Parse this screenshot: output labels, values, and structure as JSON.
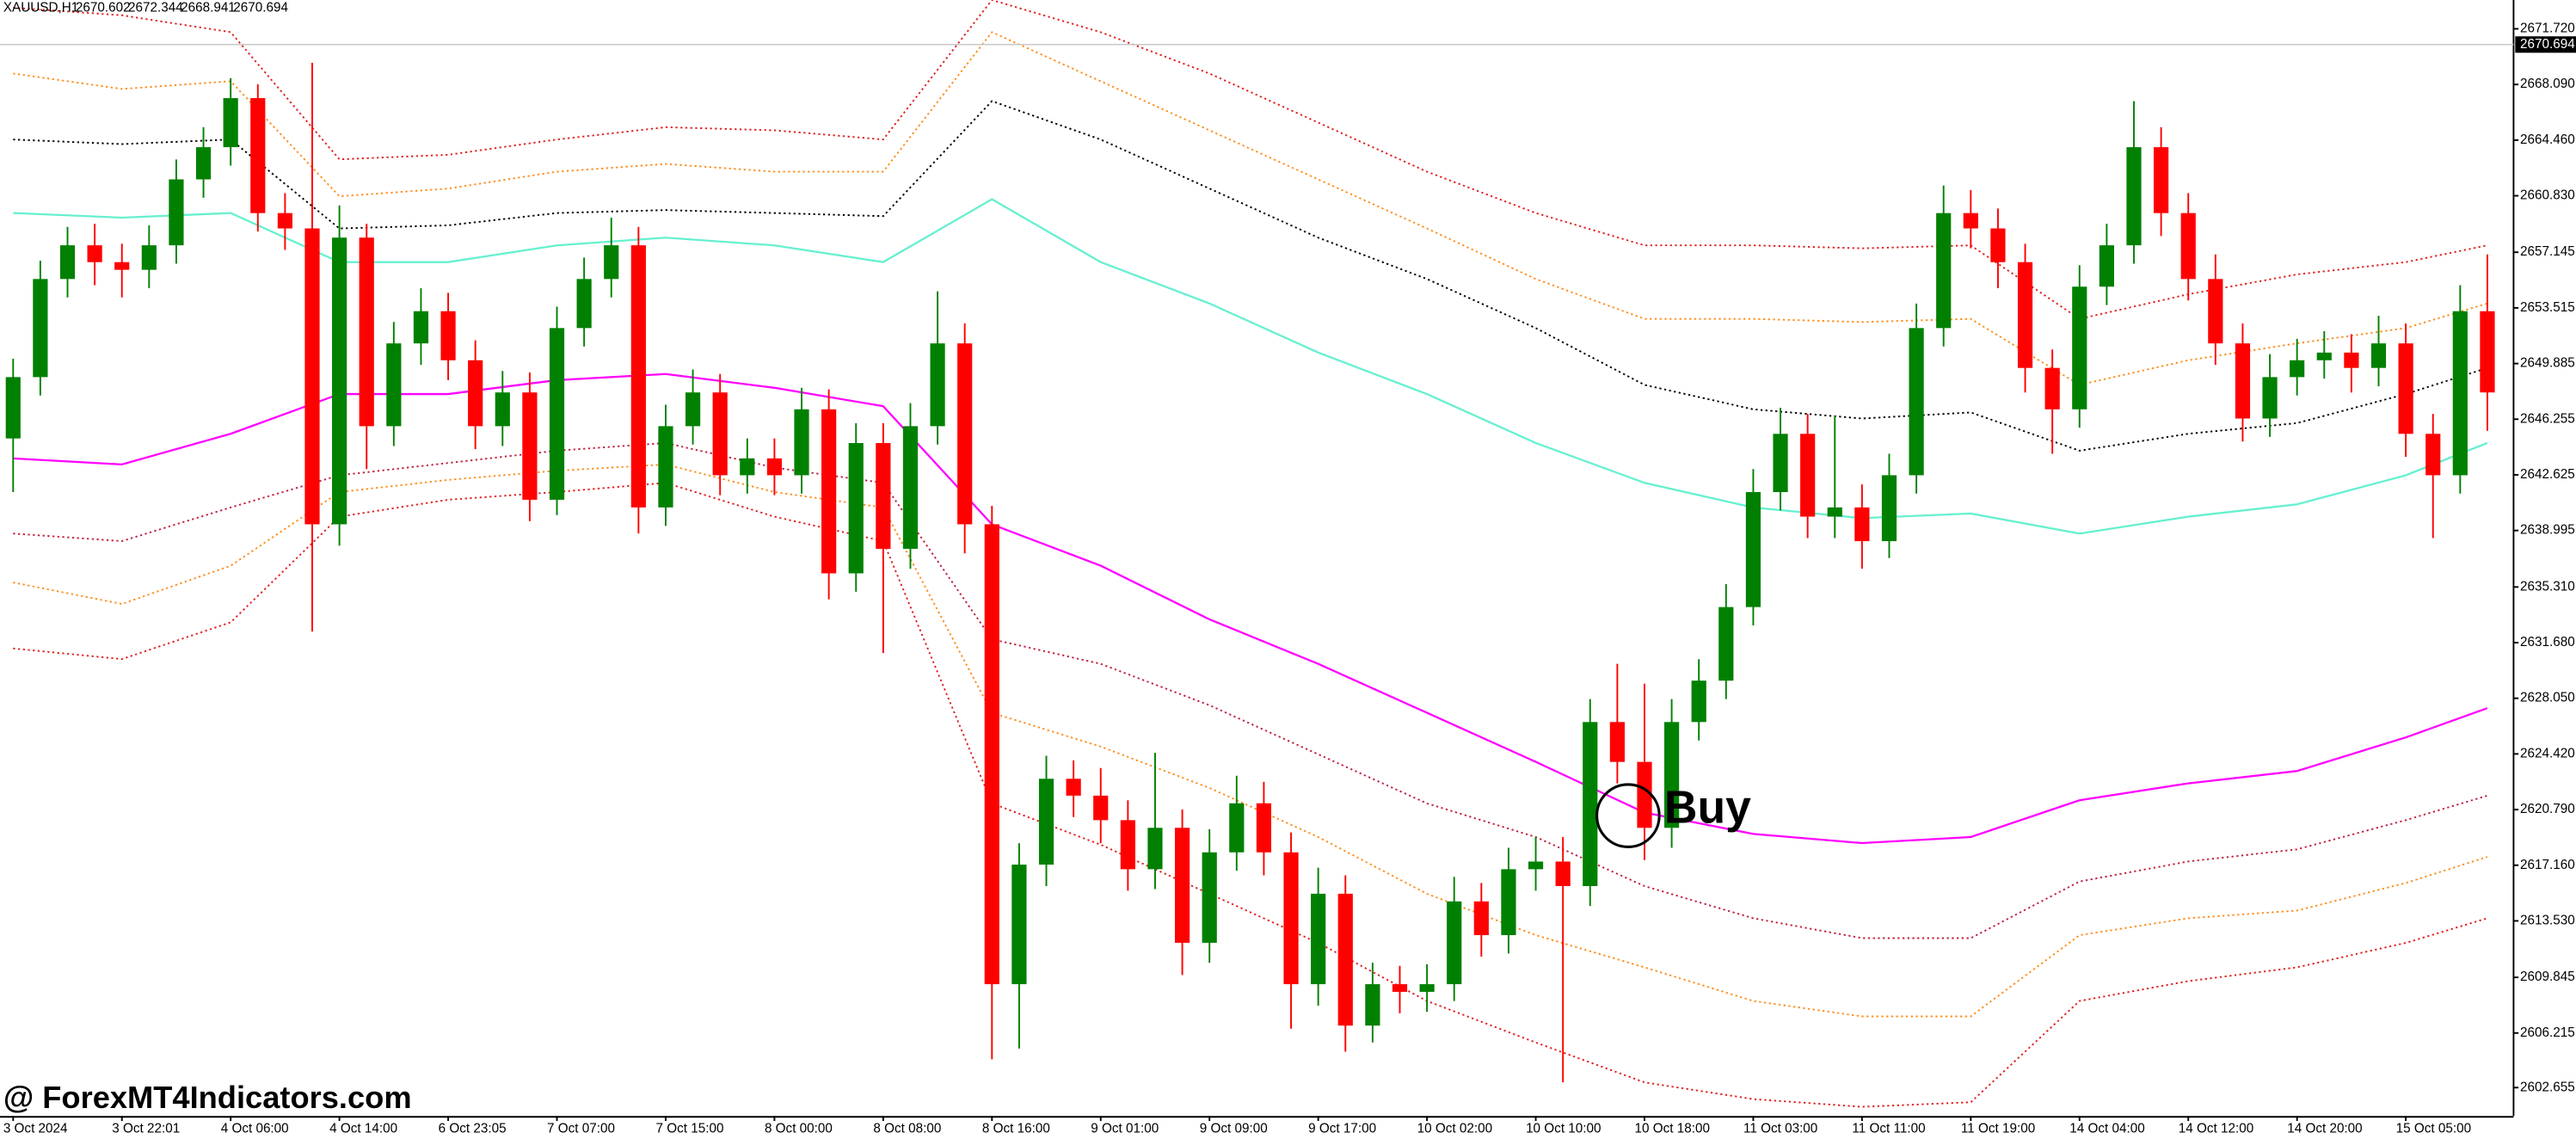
{
  "chart_data": {
    "type": "candlestick",
    "symbol": "XAUUSD,H1",
    "quote": [
      2670.602,
      2672.344,
      2668.941,
      2670.694
    ],
    "watermark": "@ ForexMT4Indicators.com",
    "annotation": "Buy",
    "up_color": "#008000",
    "down_color": "#ff0000",
    "ylim": [
      2600.8,
      2673.6
    ],
    "yticks": [
      {
        "value": 2671.72,
        "label": "2671.720"
      },
      {
        "value": 2668.09,
        "label": "2668.090"
      },
      {
        "value": 2664.46,
        "label": "2664.460"
      },
      {
        "value": 2660.83,
        "label": "2660.830"
      },
      {
        "value": 2657.145,
        "label": "2657.145"
      },
      {
        "value": 2653.515,
        "label": "2653.515"
      },
      {
        "value": 2649.885,
        "label": "2649.885"
      },
      {
        "value": 2646.255,
        "label": "2646.255"
      },
      {
        "value": 2642.625,
        "label": "2642.625"
      },
      {
        "value": 2638.995,
        "label": "2638.995"
      },
      {
        "value": 2635.31,
        "label": "2635.310"
      },
      {
        "value": 2631.68,
        "label": "2631.680"
      },
      {
        "value": 2628.05,
        "label": "2628.050"
      },
      {
        "value": 2624.42,
        "label": "2624.420"
      },
      {
        "value": 2620.79,
        "label": "2620.790"
      },
      {
        "value": 2617.16,
        "label": "2617.160"
      },
      {
        "value": 2613.53,
        "label": "2613.530"
      },
      {
        "value": 2609.845,
        "label": "2609.845"
      },
      {
        "value": 2606.215,
        "label": "2606.215"
      },
      {
        "value": 2602.655,
        "label": "2602.655"
      }
    ],
    "categories": [
      "3 Oct 2024",
      null,
      null,
      null,
      "3 Oct 22:01",
      null,
      null,
      null,
      "4 Oct 06:00",
      null,
      null,
      null,
      "4 Oct 14:00",
      null,
      null,
      null,
      "6 Oct 23:05",
      null,
      null,
      null,
      "7 Oct 07:00",
      null,
      null,
      null,
      "7 Oct 15:00",
      null,
      null,
      null,
      "8 Oct 00:00",
      null,
      null,
      null,
      "8 Oct 08:00",
      null,
      null,
      null,
      "8 Oct 16:00",
      null,
      null,
      null,
      "9 Oct 01:00",
      null,
      null,
      null,
      "9 Oct 09:00",
      null,
      null,
      null,
      "9 Oct 17:00",
      null,
      null,
      null,
      "10 Oct 02:00",
      null,
      null,
      null,
      "10 Oct 10:00",
      null,
      null,
      null,
      "10 Oct 18:00",
      null,
      null,
      null,
      "11 Oct 03:00",
      null,
      null,
      null,
      "11 Oct 11:00",
      null,
      null,
      null,
      "11 Oct 19:00",
      null,
      null,
      null,
      "14 Oct 04:00",
      null,
      null,
      null,
      "14 Oct 12:00",
      null,
      null,
      null,
      "14 Oct 20:00",
      null,
      null,
      null,
      "15 Oct 05:00",
      null,
      null,
      null
    ],
    "ohlc": [
      [
        2645.0,
        2650.2,
        2641.5,
        2649.0
      ],
      [
        2649.0,
        2656.6,
        2647.8,
        2655.4
      ],
      [
        2655.4,
        2658.8,
        2654.2,
        2657.6
      ],
      [
        2657.6,
        2659.0,
        2655.0,
        2656.5
      ],
      [
        2656.5,
        2657.7,
        2654.2,
        2656.0
      ],
      [
        2656.0,
        2658.9,
        2654.8,
        2657.6
      ],
      [
        2657.6,
        2663.2,
        2656.4,
        2661.9
      ],
      [
        2661.9,
        2665.3,
        2660.7,
        2664.0
      ],
      [
        2664.0,
        2668.5,
        2662.8,
        2667.2
      ],
      [
        2667.2,
        2668.1,
        2658.5,
        2659.7
      ],
      [
        2659.7,
        2661.0,
        2657.3,
        2658.7
      ],
      [
        2658.7,
        2669.5,
        2632.4,
        2639.4
      ],
      [
        2639.4,
        2660.2,
        2638.0,
        2658.1
      ],
      [
        2658.1,
        2659.0,
        2643.0,
        2645.8
      ],
      [
        2645.8,
        2652.6,
        2644.5,
        2651.2
      ],
      [
        2651.2,
        2654.8,
        2649.8,
        2653.3
      ],
      [
        2653.3,
        2654.5,
        2648.8,
        2650.1
      ],
      [
        2650.1,
        2651.4,
        2644.3,
        2645.8
      ],
      [
        2645.8,
        2649.4,
        2644.5,
        2648.0
      ],
      [
        2648.0,
        2649.3,
        2639.6,
        2641.0
      ],
      [
        2641.0,
        2653.6,
        2640.0,
        2652.2
      ],
      [
        2652.2,
        2656.8,
        2651.0,
        2655.4
      ],
      [
        2655.4,
        2659.4,
        2654.2,
        2657.6
      ],
      [
        2657.6,
        2658.8,
        2638.8,
        2640.5
      ],
      [
        2640.5,
        2647.2,
        2639.3,
        2645.8
      ],
      [
        2645.8,
        2649.5,
        2644.6,
        2648.0
      ],
      [
        2648.0,
        2649.2,
        2641.3,
        2642.6
      ],
      [
        2642.6,
        2645.0,
        2641.4,
        2643.7
      ],
      [
        2643.7,
        2645.0,
        2641.3,
        2642.6
      ],
      [
        2642.6,
        2648.3,
        2641.4,
        2646.9
      ],
      [
        2646.9,
        2648.2,
        2634.5,
        2636.2
      ],
      [
        2636.2,
        2646.0,
        2635.0,
        2644.7
      ],
      [
        2644.7,
        2646.0,
        2631.0,
        2637.8
      ],
      [
        2637.8,
        2647.3,
        2636.5,
        2645.8
      ],
      [
        2645.8,
        2654.6,
        2644.6,
        2651.2
      ],
      [
        2651.2,
        2652.5,
        2637.5,
        2639.4
      ],
      [
        2639.4,
        2640.6,
        2604.5,
        2609.4
      ],
      [
        2609.4,
        2618.6,
        2605.2,
        2617.2
      ],
      [
        2617.2,
        2624.3,
        2615.8,
        2622.8
      ],
      [
        2622.8,
        2624.0,
        2620.3,
        2621.7
      ],
      [
        2621.7,
        2623.5,
        2618.6,
        2620.1
      ],
      [
        2620.1,
        2621.4,
        2615.5,
        2616.9
      ],
      [
        2616.9,
        2624.5,
        2615.6,
        2619.6
      ],
      [
        2619.6,
        2620.8,
        2610.0,
        2612.1
      ],
      [
        2612.1,
        2619.5,
        2610.8,
        2618.0
      ],
      [
        2618.0,
        2623.0,
        2616.8,
        2621.2
      ],
      [
        2621.2,
        2622.6,
        2616.5,
        2618.0
      ],
      [
        2618.0,
        2619.3,
        2606.5,
        2609.4
      ],
      [
        2609.4,
        2617.0,
        2608.0,
        2615.3
      ],
      [
        2615.3,
        2616.5,
        2605.0,
        2606.7
      ],
      [
        2606.7,
        2610.8,
        2605.6,
        2609.4
      ],
      [
        2609.4,
        2610.6,
        2607.5,
        2608.9
      ],
      [
        2608.9,
        2610.7,
        2607.6,
        2609.4
      ],
      [
        2609.4,
        2616.4,
        2608.3,
        2614.8
      ],
      [
        2614.8,
        2616.0,
        2611.2,
        2612.6
      ],
      [
        2612.6,
        2618.3,
        2611.4,
        2616.9
      ],
      [
        2616.9,
        2619.0,
        2615.5,
        2617.4
      ],
      [
        2617.4,
        2619.0,
        2603.0,
        2615.8
      ],
      [
        2615.8,
        2628.0,
        2614.5,
        2626.5
      ],
      [
        2626.5,
        2630.3,
        2622.5,
        2623.9
      ],
      [
        2623.9,
        2629.0,
        2617.5,
        2619.6
      ],
      [
        2619.6,
        2628.0,
        2618.3,
        2626.5
      ],
      [
        2626.5,
        2630.6,
        2625.3,
        2629.2
      ],
      [
        2629.2,
        2635.5,
        2628.0,
        2634.0
      ],
      [
        2634.0,
        2643.0,
        2632.8,
        2641.5
      ],
      [
        2641.5,
        2647.0,
        2640.3,
        2645.3
      ],
      [
        2645.3,
        2646.6,
        2638.5,
        2639.9
      ],
      [
        2639.9,
        2646.5,
        2638.5,
        2640.5
      ],
      [
        2640.5,
        2642.0,
        2636.5,
        2638.3
      ],
      [
        2638.3,
        2644.0,
        2637.2,
        2642.6
      ],
      [
        2642.6,
        2653.8,
        2641.4,
        2652.2
      ],
      [
        2652.2,
        2661.5,
        2651.0,
        2659.7
      ],
      [
        2659.7,
        2661.2,
        2657.4,
        2658.7
      ],
      [
        2658.7,
        2660.0,
        2654.8,
        2656.5
      ],
      [
        2656.5,
        2657.7,
        2648.0,
        2649.6
      ],
      [
        2649.6,
        2650.8,
        2644.0,
        2646.9
      ],
      [
        2646.9,
        2656.3,
        2645.7,
        2654.9
      ],
      [
        2654.9,
        2659.0,
        2653.7,
        2657.6
      ],
      [
        2657.6,
        2667.0,
        2656.4,
        2664.0
      ],
      [
        2664.0,
        2665.3,
        2658.2,
        2659.7
      ],
      [
        2659.7,
        2661.0,
        2654.0,
        2655.4
      ],
      [
        2655.4,
        2657.0,
        2649.8,
        2651.2
      ],
      [
        2651.2,
        2652.5,
        2644.8,
        2646.3
      ],
      [
        2646.3,
        2650.5,
        2645.1,
        2649.0
      ],
      [
        2649.0,
        2651.5,
        2647.8,
        2650.1
      ],
      [
        2650.1,
        2652.0,
        2648.9,
        2650.6
      ],
      [
        2650.6,
        2651.8,
        2648.0,
        2649.6
      ],
      [
        2649.6,
        2653.0,
        2648.4,
        2651.2
      ],
      [
        2651.2,
        2652.5,
        2643.8,
        2645.3
      ],
      [
        2645.3,
        2646.6,
        2638.5,
        2642.6
      ],
      [
        2642.6,
        2655.0,
        2641.4,
        2653.3
      ],
      [
        2653.3,
        2657.0,
        2645.5,
        2648.0
      ]
    ],
    "indicator_x": [
      0,
      4,
      8,
      12,
      16,
      20,
      24,
      28,
      32,
      36,
      40,
      44,
      48,
      52,
      56,
      60,
      64,
      68,
      72,
      76,
      80,
      84,
      88,
      91
    ],
    "indicators": [
      {
        "color": "#ff00ff",
        "style": "solid",
        "values": [
          2643.7,
          2643.3,
          2645.3,
          2647.9,
          2647.9,
          2648.8,
          2649.2,
          2648.3,
          2647.1,
          2639.4,
          2636.7,
          2633.2,
          2630.3,
          2627.1,
          2623.9,
          2620.6,
          2619.2,
          2618.6,
          2619.0,
          2621.4,
          2622.5,
          2623.3,
          2625.5,
          2627.4
        ]
      },
      {
        "color": "#66f0d0",
        "style": "solid",
        "values": [
          2659.7,
          2659.4,
          2659.7,
          2656.5,
          2656.5,
          2657.6,
          2658.1,
          2657.6,
          2656.5,
          2660.6,
          2656.5,
          2653.8,
          2650.6,
          2647.9,
          2644.7,
          2642.1,
          2640.5,
          2639.8,
          2640.1,
          2638.8,
          2639.9,
          2640.7,
          2642.6,
          2644.7
        ]
      },
      {
        "color": "#000000",
        "style": "dotted",
        "values": [
          2664.5,
          2664.2,
          2664.5,
          2658.7,
          2658.9,
          2659.7,
          2659.9,
          2659.7,
          2659.5,
          2667.0,
          2664.5,
          2661.3,
          2658.1,
          2655.4,
          2652.2,
          2648.5,
          2646.9,
          2646.3,
          2646.7,
          2644.2,
          2645.3,
          2646.0,
          2647.9,
          2649.6
        ]
      },
      {
        "color": "#ff8c1a",
        "style": "dotted",
        "values": [
          2668.8,
          2667.8,
          2668.3,
          2660.8,
          2661.3,
          2662.4,
          2662.9,
          2662.4,
          2662.4,
          2671.5,
          2668.3,
          2665.1,
          2661.9,
          2658.7,
          2655.4,
          2652.8,
          2652.8,
          2652.6,
          2652.8,
          2648.5,
          2650.1,
          2651.2,
          2652.2,
          2653.8
        ]
      },
      {
        "color": "#e02020",
        "style": "dotted",
        "values": [
          2673.1,
          2672.6,
          2671.5,
          2663.2,
          2663.5,
          2664.5,
          2665.3,
          2665.1,
          2664.5,
          2673.6,
          2671.5,
          2668.8,
          2665.6,
          2662.4,
          2659.7,
          2657.6,
          2657.6,
          2657.4,
          2657.6,
          2652.8,
          2654.4,
          2655.7,
          2656.5,
          2657.6
        ]
      },
      {
        "color": "#c02040",
        "style": "dotted",
        "values": [
          2638.8,
          2638.3,
          2640.5,
          2642.6,
          2643.4,
          2644.2,
          2644.7,
          2643.1,
          2642.1,
          2631.9,
          2630.3,
          2627.6,
          2624.4,
          2621.2,
          2619.0,
          2615.8,
          2613.7,
          2612.4,
          2612.4,
          2616.1,
          2617.4,
          2618.2,
          2620.1,
          2621.7
        ]
      },
      {
        "color": "#ff8c1a",
        "style": "dotted",
        "values": [
          2635.6,
          2634.2,
          2636.7,
          2641.5,
          2642.3,
          2642.9,
          2643.3,
          2641.5,
          2640.5,
          2627.1,
          2624.9,
          2622.2,
          2619.0,
          2615.3,
          2612.6,
          2610.5,
          2608.3,
          2607.3,
          2607.3,
          2612.6,
          2613.7,
          2614.2,
          2616.0,
          2617.7
        ]
      },
      {
        "color": "#e02020",
        "style": "dotted",
        "values": [
          2631.3,
          2630.6,
          2633.0,
          2639.9,
          2641.0,
          2641.5,
          2642.1,
          2639.9,
          2638.3,
          2621.2,
          2618.5,
          2615.3,
          2612.1,
          2608.3,
          2605.6,
          2603.0,
          2601.9,
          2601.4,
          2601.7,
          2608.3,
          2609.6,
          2610.5,
          2612.1,
          2613.7
        ]
      }
    ]
  }
}
